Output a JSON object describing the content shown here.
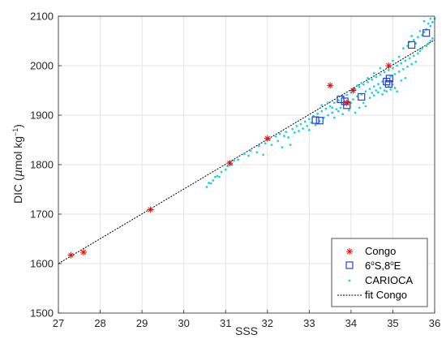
{
  "chart_data": {
    "type": "scatter",
    "xlabel": "SSS",
    "ylabel_parts": {
      "pre": "DIC (",
      "mu": "μ",
      "mid": "mol kg",
      "exp": "−1",
      "post": ")"
    },
    "xlim": [
      27,
      36
    ],
    "ylim": [
      1500,
      2100
    ],
    "xticks": [
      27,
      28,
      29,
      30,
      31,
      32,
      33,
      34,
      35,
      36
    ],
    "yticks": [
      1500,
      1600,
      1700,
      1800,
      1900,
      2000,
      2100
    ],
    "grid": true,
    "legend_position": "bottom-right",
    "series": [
      {
        "name": "Congo",
        "marker": "asterisk",
        "color": "#ff0000",
        "points": [
          [
            27.3,
            1617
          ],
          [
            27.6,
            1623
          ],
          [
            29.2,
            1709
          ],
          [
            31.1,
            1803
          ],
          [
            32.0,
            1853
          ],
          [
            33.5,
            1960
          ],
          [
            33.9,
            1925
          ],
          [
            34.05,
            1950
          ],
          [
            34.9,
            2000
          ]
        ]
      },
      {
        "name_parts": {
          "a": "6",
          "b": "o",
          "c": "S,8",
          "d": "o",
          "e": "E"
        },
        "marker": "square",
        "color": "#2a3fc8",
        "points": [
          [
            33.15,
            1890
          ],
          [
            33.25,
            1889
          ],
          [
            33.75,
            1932
          ],
          [
            33.85,
            1928
          ],
          [
            33.9,
            1920
          ],
          [
            34.25,
            1937
          ],
          [
            34.85,
            1968
          ],
          [
            34.9,
            1963
          ],
          [
            34.92,
            1974
          ],
          [
            35.45,
            2042
          ],
          [
            35.8,
            2066
          ]
        ]
      },
      {
        "name": "CARIOCA",
        "marker": "dot",
        "color": "#22d3e6",
        "points": [
          [
            30.55,
            1755
          ],
          [
            30.6,
            1763
          ],
          [
            30.65,
            1762
          ],
          [
            30.7,
            1768
          ],
          [
            30.75,
            1775
          ],
          [
            30.8,
            1777
          ],
          [
            30.85,
            1775
          ],
          [
            30.9,
            1785
          ],
          [
            31.0,
            1790
          ],
          [
            31.05,
            1797
          ],
          [
            31.15,
            1800
          ],
          [
            31.2,
            1808
          ],
          [
            31.3,
            1810
          ],
          [
            31.45,
            1822
          ],
          [
            31.55,
            1818
          ],
          [
            31.6,
            1828
          ],
          [
            31.75,
            1825
          ],
          [
            31.8,
            1838
          ],
          [
            31.9,
            1820
          ],
          [
            31.95,
            1843
          ],
          [
            32.05,
            1850
          ],
          [
            32.1,
            1840
          ],
          [
            32.2,
            1857
          ],
          [
            32.25,
            1848
          ],
          [
            32.3,
            1862
          ],
          [
            32.4,
            1858
          ],
          [
            32.45,
            1866
          ],
          [
            32.5,
            1855
          ],
          [
            32.6,
            1872
          ],
          [
            32.65,
            1865
          ],
          [
            32.7,
            1878
          ],
          [
            32.75,
            1868
          ],
          [
            32.8,
            1882
          ],
          [
            32.85,
            1873
          ],
          [
            32.9,
            1887
          ],
          [
            32.95,
            1878
          ],
          [
            33.0,
            1892
          ],
          [
            33.0,
            1870
          ],
          [
            33.05,
            1885
          ],
          [
            33.1,
            1898
          ],
          [
            33.15,
            1880
          ],
          [
            33.2,
            1903
          ],
          [
            33.25,
            1888
          ],
          [
            33.3,
            1908
          ],
          [
            33.35,
            1895
          ],
          [
            33.4,
            1913
          ],
          [
            33.45,
            1900
          ],
          [
            33.5,
            1918
          ],
          [
            33.55,
            1905
          ],
          [
            33.6,
            1925
          ],
          [
            33.6,
            1895
          ],
          [
            33.65,
            1912
          ],
          [
            33.7,
            1930
          ],
          [
            33.75,
            1915
          ],
          [
            33.8,
            1936
          ],
          [
            33.85,
            1922
          ],
          [
            33.9,
            1941
          ],
          [
            33.95,
            1910
          ],
          [
            34.0,
            1946
          ],
          [
            34.0,
            1925
          ],
          [
            34.05,
            1932
          ],
          [
            34.1,
            1952
          ],
          [
            34.1,
            1905
          ],
          [
            34.15,
            1938
          ],
          [
            34.2,
            1957
          ],
          [
            34.25,
            1942
          ],
          [
            34.3,
            1962
          ],
          [
            34.3,
            1925
          ],
          [
            34.35,
            1948
          ],
          [
            34.4,
            1967
          ],
          [
            34.45,
            1953
          ],
          [
            34.5,
            1972
          ],
          [
            34.5,
            1945
          ],
          [
            34.55,
            1958
          ],
          [
            34.6,
            1977
          ],
          [
            34.6,
            1950
          ],
          [
            34.65,
            1963
          ],
          [
            34.7,
            1982
          ],
          [
            34.7,
            1955
          ],
          [
            34.75,
            1968
          ],
          [
            34.8,
            1987
          ],
          [
            34.8,
            1950
          ],
          [
            34.85,
            1973
          ],
          [
            34.9,
            1991
          ],
          [
            34.9,
            1958
          ],
          [
            34.95,
            1978
          ],
          [
            35.0,
            1995
          ],
          [
            35.0,
            1962
          ],
          [
            35.05,
            1983
          ],
          [
            35.1,
            2000
          ],
          [
            35.1,
            1948
          ],
          [
            35.15,
            1988
          ],
          [
            35.2,
            2005
          ],
          [
            35.2,
            1970
          ],
          [
            35.25,
            1993
          ],
          [
            35.3,
            2010
          ],
          [
            35.3,
            1975
          ],
          [
            35.35,
            1998
          ],
          [
            35.4,
            2015
          ],
          [
            35.4,
            2048
          ],
          [
            35.45,
            2003
          ],
          [
            35.5,
            2020
          ],
          [
            35.5,
            2052
          ],
          [
            35.55,
            2008
          ],
          [
            35.6,
            2025
          ],
          [
            35.6,
            2058
          ],
          [
            35.65,
            2030
          ],
          [
            35.7,
            2062
          ],
          [
            35.7,
            2035
          ],
          [
            35.75,
            2068
          ],
          [
            35.8,
            2040
          ],
          [
            35.8,
            2074
          ],
          [
            35.85,
            2045
          ],
          [
            35.9,
            2080
          ],
          [
            35.9,
            2050
          ],
          [
            35.95,
            2088
          ],
          [
            35.95,
            2055
          ],
          [
            36.0,
            2095
          ],
          [
            34.35,
            1918
          ],
          [
            34.45,
            1935
          ],
          [
            34.55,
            1940
          ],
          [
            34.65,
            1946
          ],
          [
            34.75,
            1942
          ],
          [
            34.85,
            1948
          ],
          [
            34.95,
            1952
          ],
          [
            35.05,
            1955
          ],
          [
            33.7,
            1908
          ],
          [
            33.8,
            1902
          ],
          [
            33.55,
            1915
          ],
          [
            34.2,
            1915
          ],
          [
            35.35,
            2040
          ],
          [
            35.55,
            2045
          ],
          [
            35.25,
            2035
          ],
          [
            35.45,
            2060
          ],
          [
            35.65,
            2070
          ],
          [
            35.85,
            2085
          ],
          [
            35.75,
            2090
          ],
          [
            35.9,
            2095
          ],
          [
            34.15,
            1960
          ],
          [
            34.25,
            1965
          ],
          [
            34.4,
            1975
          ],
          [
            34.55,
            1985
          ],
          [
            34.7,
            1995
          ],
          [
            35.0,
            2010
          ],
          [
            35.15,
            2018
          ],
          [
            33.3,
            1920
          ],
          [
            33.45,
            1925
          ],
          [
            32.55,
            1840
          ],
          [
            32.35,
            1835
          ]
        ]
      },
      {
        "name": "fit Congo",
        "type": "line",
        "style": "dotted",
        "color": "#000000",
        "x": [
          27,
          36
        ],
        "y": [
          1600,
          2052
        ]
      }
    ]
  }
}
